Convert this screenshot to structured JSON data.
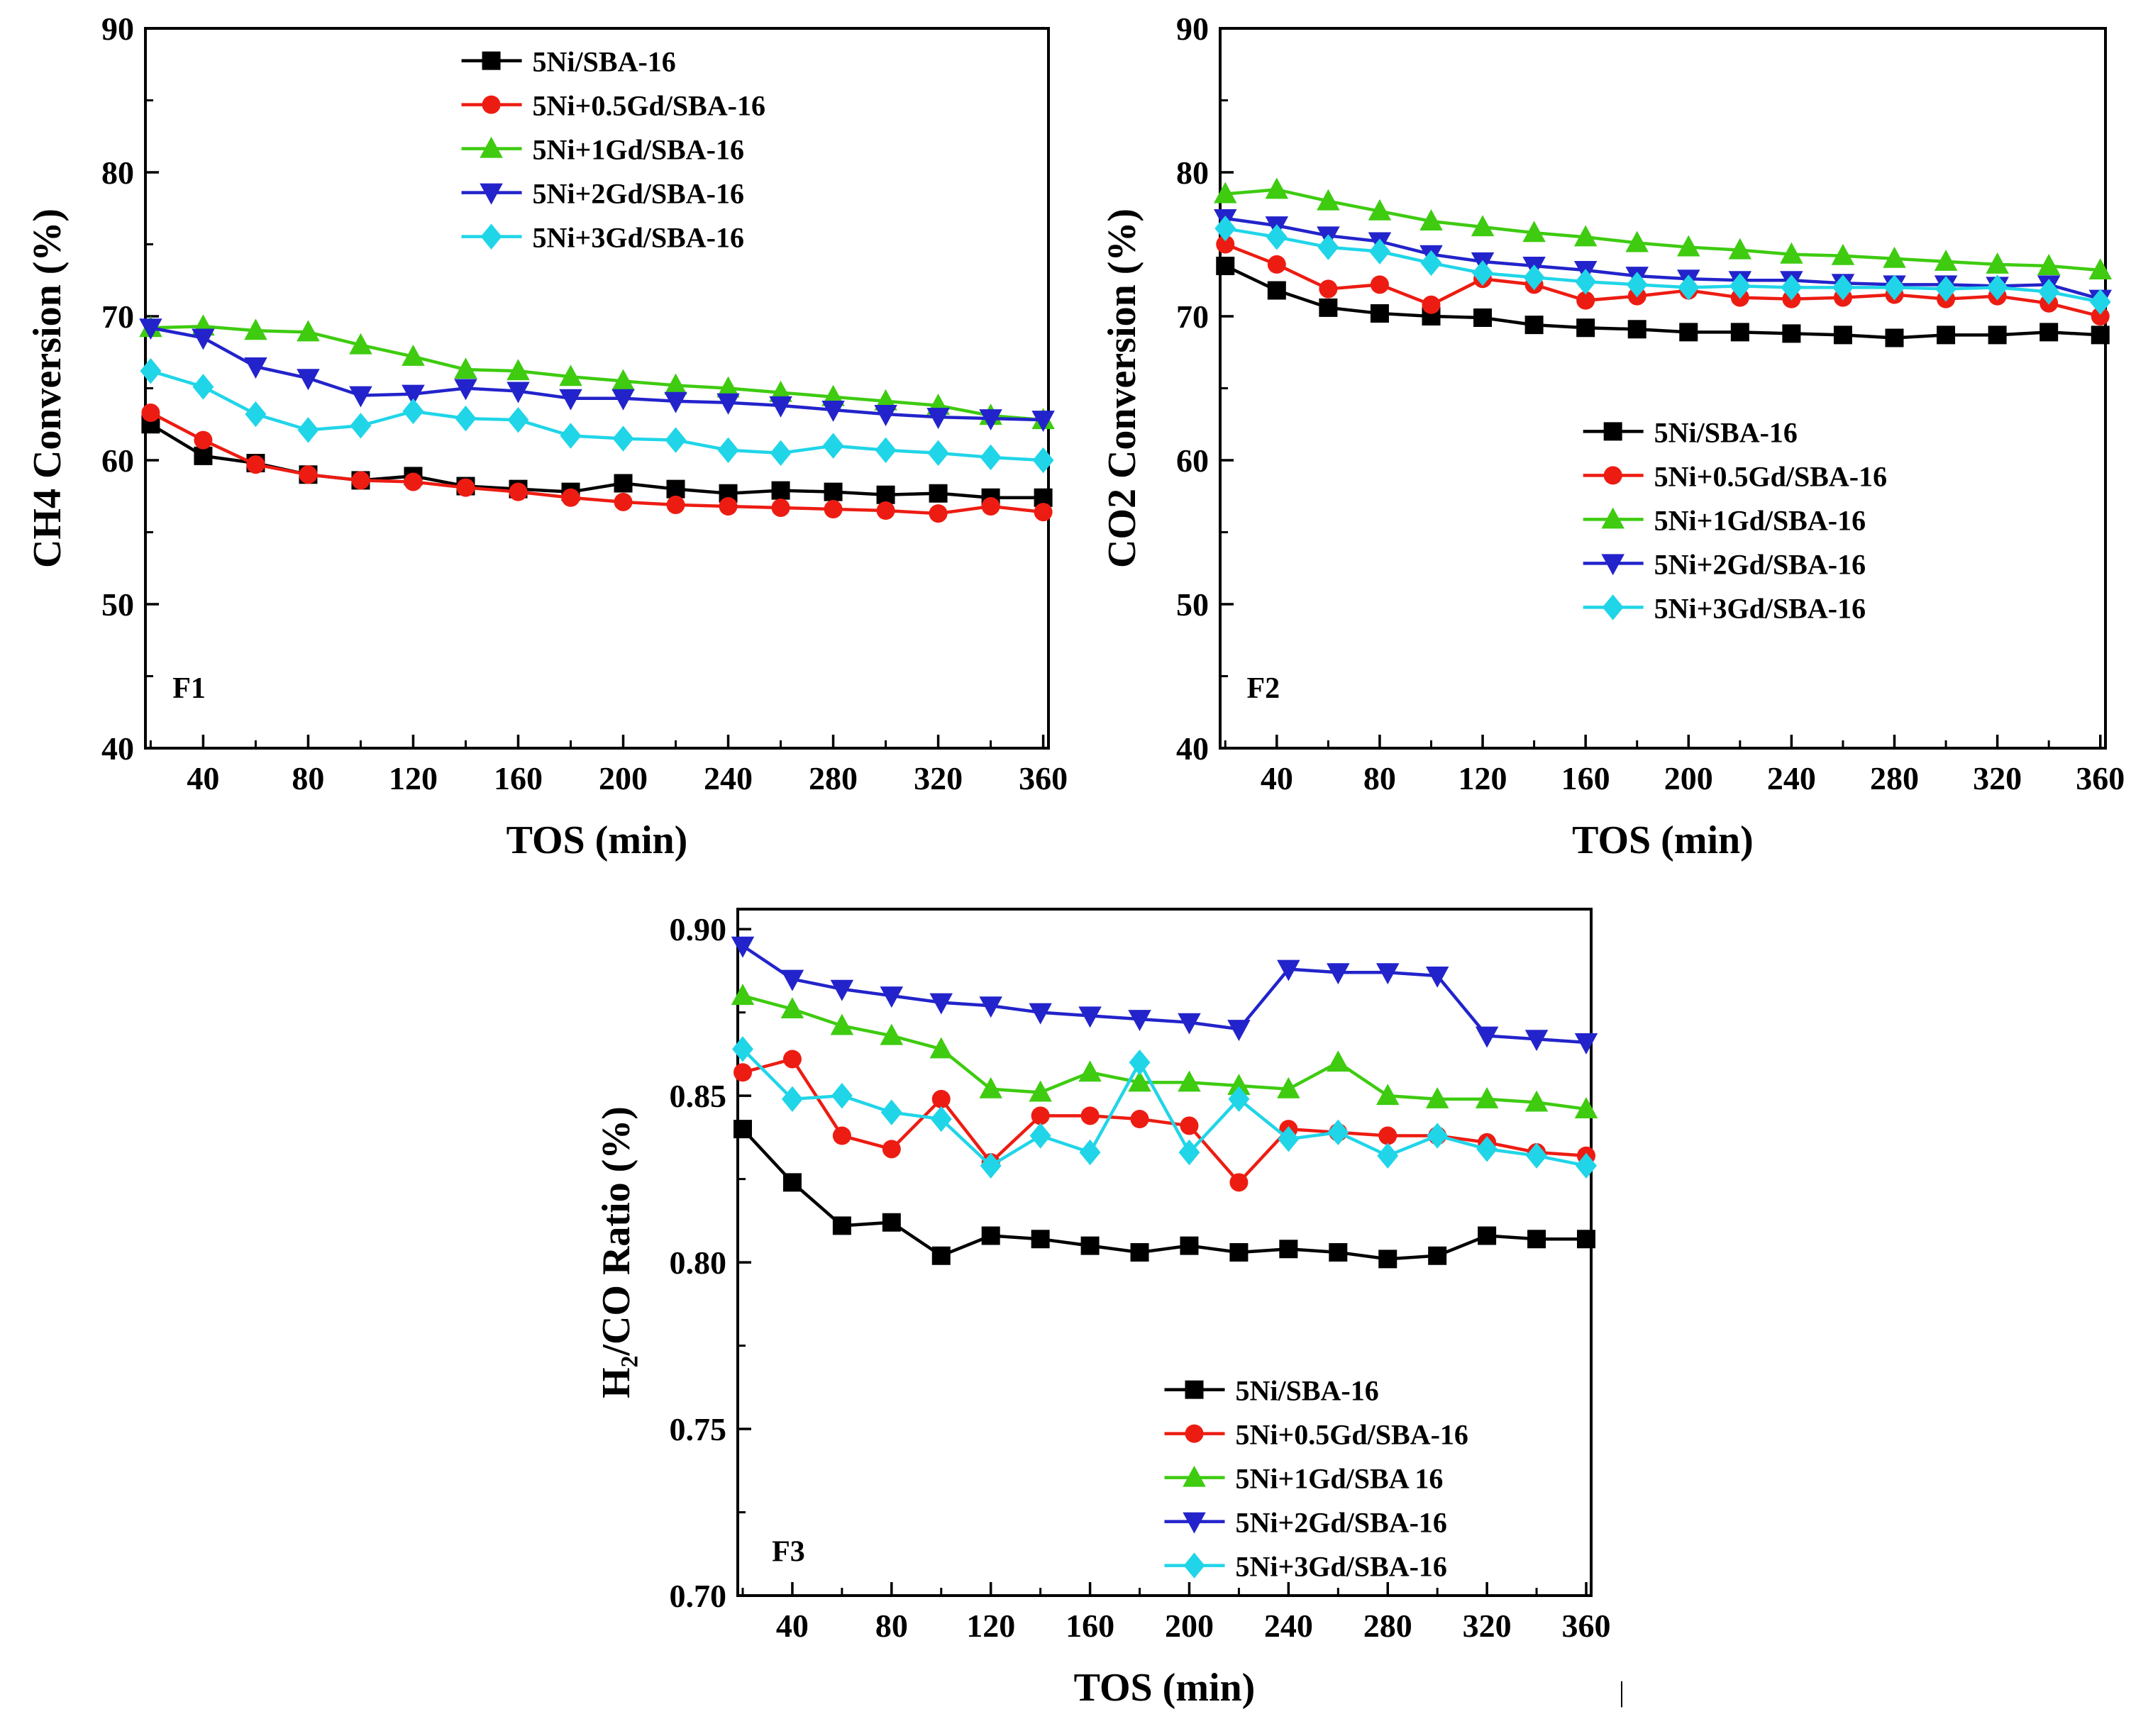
{
  "figure": {
    "background": "#ffffff"
  },
  "artifact": {
    "glyph": "|"
  },
  "chart_data": [
    {
      "type": "line",
      "panel_label": "F1",
      "xlabel": "TOS (min)",
      "ylabel": "CH4 Conversion (%)",
      "xlim": [
        18,
        362
      ],
      "ylim": [
        40,
        90
      ],
      "xticks": [
        40,
        80,
        120,
        160,
        200,
        240,
        280,
        320,
        360
      ],
      "yticks": [
        40,
        50,
        60,
        70,
        80,
        90
      ],
      "xminor": 20,
      "yminor": 5,
      "ytick_decimals": 0,
      "grid": false,
      "legend": {
        "position": "inside-top-center",
        "fx": 0.35,
        "fy": 0.045
      },
      "panel": {
        "fx": 0.03,
        "fy": 0.93
      },
      "x": [
        20,
        40,
        60,
        80,
        100,
        120,
        140,
        160,
        180,
        200,
        220,
        240,
        260,
        280,
        300,
        320,
        340,
        360
      ],
      "series": [
        {
          "label": "5Ni/SBA-16",
          "color": "#000000",
          "marker": "square",
          "values": [
            62.5,
            60.3,
            59.8,
            59.0,
            58.6,
            58.9,
            58.2,
            58.0,
            57.8,
            58.4,
            58.0,
            57.7,
            57.9,
            57.8,
            57.6,
            57.7,
            57.4,
            57.4
          ]
        },
        {
          "label": "5Ni+0.5Gd/SBA-16",
          "color": "#ed1c12",
          "marker": "circle",
          "values": [
            63.3,
            61.4,
            59.7,
            59.0,
            58.6,
            58.5,
            58.1,
            57.8,
            57.4,
            57.1,
            56.9,
            56.8,
            56.7,
            56.6,
            56.5,
            56.3,
            56.8,
            56.4
          ]
        },
        {
          "label": "5Ni+1Gd/SBA-16",
          "color": "#3ecb10",
          "marker": "triangle-up",
          "values": [
            69.2,
            69.3,
            69.0,
            68.9,
            68.0,
            67.2,
            66.3,
            66.2,
            65.8,
            65.5,
            65.2,
            65.0,
            64.7,
            64.4,
            64.1,
            63.8,
            63.1,
            62.8
          ]
        },
        {
          "label": "5Ni+2Gd/SBA-16",
          "color": "#2323cb",
          "marker": "triangle-down",
          "values": [
            69.2,
            68.5,
            66.5,
            65.7,
            64.5,
            64.6,
            65.0,
            64.8,
            64.3,
            64.3,
            64.1,
            64.0,
            63.8,
            63.5,
            63.2,
            63.0,
            62.9,
            62.8
          ]
        },
        {
          "label": "5Ni+3Gd/SBA-16",
          "color": "#20d5e8",
          "marker": "diamond",
          "values": [
            66.2,
            65.1,
            63.2,
            62.1,
            62.4,
            63.4,
            62.9,
            62.8,
            61.7,
            61.5,
            61.4,
            60.7,
            60.5,
            61.0,
            60.7,
            60.5,
            60.2,
            60.0
          ]
        }
      ]
    },
    {
      "type": "line",
      "panel_label": "F2",
      "xlabel": "TOS (min)",
      "ylabel": "CO2 Conversion (%)",
      "xlim": [
        18,
        362
      ],
      "ylim": [
        40,
        90
      ],
      "xticks": [
        40,
        80,
        120,
        160,
        200,
        240,
        280,
        320,
        360
      ],
      "yticks": [
        40,
        50,
        60,
        70,
        80,
        90
      ],
      "xminor": 20,
      "yminor": 5,
      "ytick_decimals": 0,
      "grid": false,
      "legend": {
        "position": "inside-middle-right",
        "fx": 0.41,
        "fy": 0.56
      },
      "panel": {
        "fx": 0.03,
        "fy": 0.93
      },
      "x": [
        20,
        40,
        60,
        80,
        100,
        120,
        140,
        160,
        180,
        200,
        220,
        240,
        260,
        280,
        300,
        320,
        340,
        360
      ],
      "series": [
        {
          "label": "5Ni/SBA-16",
          "color": "#000000",
          "marker": "square",
          "values": [
            73.5,
            71.8,
            70.6,
            70.2,
            70.0,
            69.9,
            69.4,
            69.2,
            69.1,
            68.9,
            68.9,
            68.8,
            68.7,
            68.5,
            68.7,
            68.7,
            68.9,
            68.7
          ]
        },
        {
          "label": "5Ni+0.5Gd/SBA-16",
          "color": "#ed1c12",
          "marker": "circle",
          "values": [
            75.0,
            73.6,
            71.9,
            72.2,
            70.8,
            72.6,
            72.2,
            71.1,
            71.4,
            71.8,
            71.3,
            71.2,
            71.3,
            71.5,
            71.2,
            71.4,
            70.9,
            70.0
          ]
        },
        {
          "label": "5Ni+1Gd/SBA-16",
          "color": "#3ecb10",
          "marker": "triangle-up",
          "values": [
            78.5,
            78.8,
            78.0,
            77.3,
            76.6,
            76.2,
            75.8,
            75.5,
            75.1,
            74.8,
            74.6,
            74.3,
            74.2,
            74.0,
            73.8,
            73.6,
            73.5,
            73.2
          ]
        },
        {
          "label": "5Ni+2Gd/SBA-16",
          "color": "#2323cb",
          "marker": "triangle-down",
          "values": [
            76.8,
            76.3,
            75.6,
            75.2,
            74.3,
            73.8,
            73.5,
            73.2,
            72.8,
            72.6,
            72.5,
            72.5,
            72.3,
            72.2,
            72.2,
            72.1,
            72.2,
            71.2
          ]
        },
        {
          "label": "5Ni+3Gd/SBA-16",
          "color": "#20d5e8",
          "marker": "diamond",
          "values": [
            76.1,
            75.5,
            74.8,
            74.5,
            73.7,
            73.0,
            72.7,
            72.4,
            72.2,
            72.0,
            72.1,
            72.0,
            72.0,
            72.0,
            71.9,
            72.0,
            71.7,
            71.0
          ]
        }
      ]
    },
    {
      "type": "line",
      "panel_label": "F3",
      "xlabel": "TOS (min)",
      "ylabel": "H₂/CO Ratio (%)",
      "xlim": [
        18,
        362
      ],
      "ylim": [
        0.7,
        0.906
      ],
      "xticks": [
        40,
        80,
        120,
        160,
        200,
        240,
        280,
        320,
        360
      ],
      "yticks": [
        0.7,
        0.75,
        0.8,
        0.85,
        0.9
      ],
      "xminor": 20,
      "yminor": 0.025,
      "ytick_decimals": 2,
      "grid": false,
      "legend": {
        "position": "inside-bottom-right",
        "fx": 0.5,
        "fy": 0.7
      },
      "panel": {
        "fx": 0.04,
        "fy": 0.95
      },
      "x": [
        20,
        40,
        60,
        80,
        100,
        120,
        140,
        160,
        180,
        200,
        220,
        240,
        260,
        280,
        300,
        320,
        340,
        360
      ],
      "series": [
        {
          "label": "5Ni/SBA-16",
          "color": "#000000",
          "marker": "square",
          "values": [
            0.84,
            0.824,
            0.811,
            0.812,
            0.802,
            0.808,
            0.807,
            0.805,
            0.803,
            0.805,
            0.803,
            0.804,
            0.803,
            0.801,
            0.802,
            0.808,
            0.807,
            0.807
          ]
        },
        {
          "label": "5Ni+0.5Gd/SBA-16",
          "color": "#ed1c12",
          "marker": "circle",
          "values": [
            0.857,
            0.861,
            0.838,
            0.834,
            0.849,
            0.83,
            0.844,
            0.844,
            0.843,
            0.841,
            0.824,
            0.84,
            0.839,
            0.838,
            0.838,
            0.836,
            0.833,
            0.832
          ]
        },
        {
          "label": "5Ni+1Gd/SBA 16",
          "color": "#3ecb10",
          "marker": "triangle-up",
          "values": [
            0.88,
            0.876,
            0.871,
            0.868,
            0.864,
            0.852,
            0.851,
            0.857,
            0.854,
            0.854,
            0.853,
            0.852,
            0.86,
            0.85,
            0.849,
            0.849,
            0.848,
            0.846
          ]
        },
        {
          "label": "5Ni+2Gd/SBA-16",
          "color": "#2323cb",
          "marker": "triangle-down",
          "values": [
            0.895,
            0.885,
            0.882,
            0.88,
            0.878,
            0.877,
            0.875,
            0.874,
            0.873,
            0.872,
            0.87,
            0.888,
            0.887,
            0.887,
            0.886,
            0.868,
            0.867,
            0.866
          ]
        },
        {
          "label": "5Ni+3Gd/SBA-16",
          "color": "#20d5e8",
          "marker": "diamond",
          "values": [
            0.864,
            0.849,
            0.85,
            0.845,
            0.843,
            0.829,
            0.838,
            0.833,
            0.86,
            0.833,
            0.849,
            0.837,
            0.839,
            0.832,
            0.838,
            0.834,
            0.832,
            0.829
          ]
        }
      ]
    }
  ]
}
